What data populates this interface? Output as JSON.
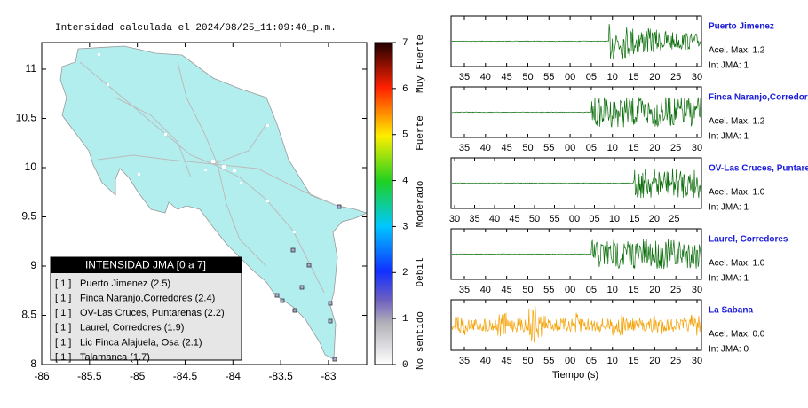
{
  "map": {
    "title": "Intensidad calculada el 2024/08/25_11:09:40_p.m.",
    "xlim": [
      -86,
      -82.6
    ],
    "ylim": [
      8,
      11.27
    ],
    "xticks": [
      -86,
      -85.5,
      -85,
      -84.5,
      -84,
      -83.5,
      -83
    ],
    "yticks": [
      8,
      8.5,
      9,
      9.5,
      10,
      10.5,
      11
    ],
    "legend": {
      "title": "INTENSIDAD JMA [0 a 7]",
      "items": [
        {
          "level": "[ 1 ]",
          "label": "Puerto Jimenez (2.5)"
        },
        {
          "level": "[ 1 ]",
          "label": "Finca Naranjo,Corredores (2.4)"
        },
        {
          "level": "[ 1 ]",
          "label": "OV-Las Cruces, Puntarenas (2.2)"
        },
        {
          "level": "[ 1 ]",
          "label": "Laurel, Corredores (1.9)"
        },
        {
          "level": "[ 1 ]",
          "label": "Lic Finca Alajuela, Osa (2.1)"
        },
        {
          "level": "[ 1 ]",
          "label": "Talamanca (1.7)"
        }
      ]
    }
  },
  "colorbar": {
    "lim": [
      0,
      7
    ],
    "ticks": [
      0,
      1,
      2,
      3,
      4,
      5,
      6,
      7
    ],
    "classes": [
      "No sentido",
      "Debil",
      "Moderado",
      "Fuerte",
      "Muy Fuerte"
    ]
  },
  "traces": [
    {
      "station": "Puerto Jimenez",
      "acel": "Acel. Max. 1.2",
      "int": "Int JMA: 1",
      "color": "#0a6e0a",
      "xlim": [
        31.85,
        91.05
      ],
      "xticks": [
        35,
        40,
        45,
        50,
        55,
        {
          "value": 60,
          "label": "00"
        },
        {
          "value": 65,
          "label": "05"
        },
        {
          "value": 70,
          "label": "10"
        },
        {
          "value": 75,
          "label": "15"
        },
        {
          "value": 80,
          "label": "20"
        },
        {
          "value": 85,
          "label": "25"
        },
        {
          "value": 90,
          "label": "30"
        }
      ]
    },
    {
      "station": "Finca Naranjo,Corredores",
      "acel": "Acel. Max. 1.2",
      "int": "Int JMA: 1",
      "color": "#0a6e0a",
      "xlim": [
        31.85,
        91.05
      ],
      "xticks": [
        35,
        40,
        45,
        50,
        55,
        {
          "value": 60,
          "label": "00"
        },
        {
          "value": 65,
          "label": "05"
        },
        {
          "value": 70,
          "label": "10"
        },
        {
          "value": 75,
          "label": "15"
        },
        {
          "value": 80,
          "label": "20"
        },
        {
          "value": 85,
          "label": "25"
        },
        {
          "value": 90,
          "label": "30"
        }
      ]
    },
    {
      "station": "OV-Las Cruces, Puntarenas",
      "acel": "Acel. Max. 1.0",
      "int": "Int JMA: 1",
      "color": "#0a6e0a",
      "xlim": [
        29.1,
        91.8
      ],
      "xticks": [
        30,
        35,
        40,
        45,
        50,
        55,
        {
          "value": 60,
          "label": "00"
        },
        {
          "value": 65,
          "label": "05"
        },
        {
          "value": 70,
          "label": "10"
        },
        {
          "value": 75,
          "label": "15"
        },
        {
          "value": 80,
          "label": "20"
        },
        {
          "value": 85,
          "label": "25"
        }
      ]
    },
    {
      "station": "Laurel, Corredores",
      "acel": "Acel. Max. 1.0",
      "int": "Int JMA: 1",
      "color": "#0a6e0a",
      "xlim": [
        31.85,
        91.05
      ],
      "xticks": [
        35,
        40,
        45,
        50,
        55,
        {
          "value": 60,
          "label": "00"
        },
        {
          "value": 65,
          "label": "05"
        },
        {
          "value": 70,
          "label": "10"
        },
        {
          "value": 75,
          "label": "15"
        },
        {
          "value": 80,
          "label": "20"
        },
        {
          "value": 85,
          "label": "25"
        },
        {
          "value": 90,
          "label": "30"
        }
      ]
    },
    {
      "station": "La Sabana",
      "acel": "Acel. Max. 0.0",
      "int": "Int JMA: 0",
      "color": "#f5a000",
      "xlim": [
        31.85,
        91.05
      ],
      "xticks": [
        35,
        40,
        45,
        50,
        55,
        {
          "value": 60,
          "label": "00"
        },
        {
          "value": 65,
          "label": "05"
        },
        {
          "value": 70,
          "label": "10"
        },
        {
          "value": 75,
          "label": "15"
        },
        {
          "value": 80,
          "label": "20"
        },
        {
          "value": 85,
          "label": "25"
        },
        {
          "value": 90,
          "label": "30"
        }
      ]
    }
  ],
  "time_axis_label": "Tiempo (s)"
}
